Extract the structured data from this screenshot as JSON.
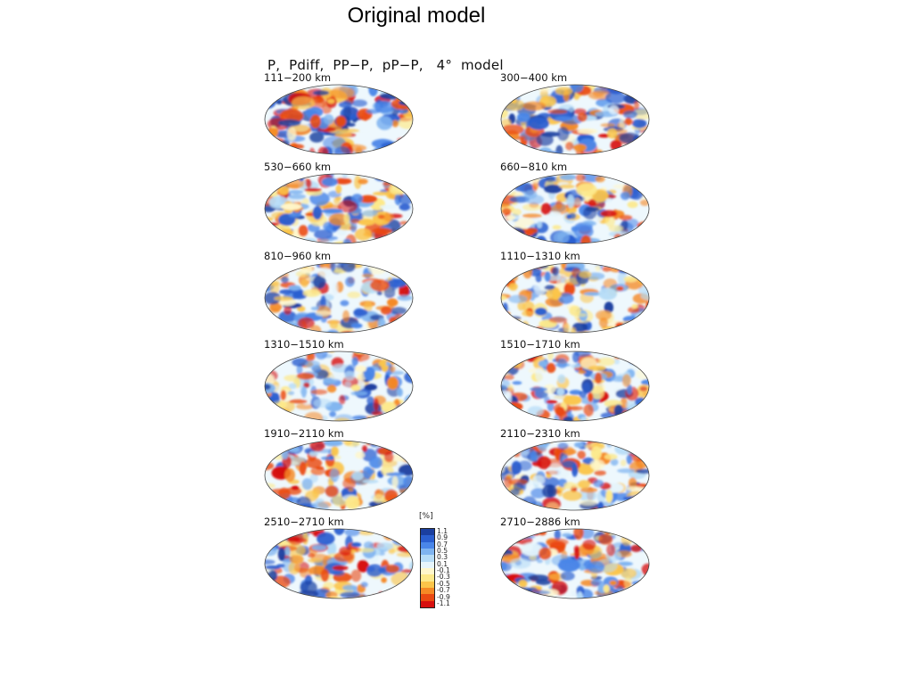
{
  "slide_title": "Original model",
  "figure_title": "P,  Pdiff,  PP−P,  pP−P,   4°  model",
  "colorbar": {
    "unit": "[%]",
    "ticks": [
      "1.1",
      "0.9",
      "0.7",
      "0.5",
      "0.3",
      "0.1",
      "-0.1",
      "-0.3",
      "-0.5",
      "-0.7",
      "-0.9",
      "-1.1"
    ],
    "colors": [
      "#1b3fa0",
      "#2b5fd0",
      "#4a86e8",
      "#7fb4f0",
      "#b6dcf7",
      "#e6f5fc",
      "#fff7cc",
      "#fde98a",
      "#fbc54a",
      "#f58a25",
      "#ea4a12",
      "#d7100f"
    ]
  },
  "panels": [
    {
      "label": "111−200  km",
      "intensity": 1.0,
      "bias": 0.0
    },
    {
      "label": "300−400  km",
      "intensity": 0.85,
      "bias": 0.05
    },
    {
      "label": "530−660  km",
      "intensity": 0.65,
      "bias": 0.0
    },
    {
      "label": "660−810  km",
      "intensity": 0.65,
      "bias": 0.1
    },
    {
      "label": "810−960  km",
      "intensity": 0.5,
      "bias": 0.15
    },
    {
      "label": "1110−1310  km",
      "intensity": 0.45,
      "bias": 0.1
    },
    {
      "label": "1310−1510  km",
      "intensity": 0.42,
      "bias": 0.05
    },
    {
      "label": "1510−1710  km",
      "intensity": 0.42,
      "bias": 0.05
    },
    {
      "label": "1910−2110  km",
      "intensity": 0.48,
      "bias": 0.0
    },
    {
      "label": "2110−2310  km",
      "intensity": 0.5,
      "bias": -0.05
    },
    {
      "label": "2510−2710  km",
      "intensity": 0.62,
      "bias": -0.1
    },
    {
      "label": "2710−2886  km",
      "intensity": 0.78,
      "bias": -0.15
    }
  ]
}
